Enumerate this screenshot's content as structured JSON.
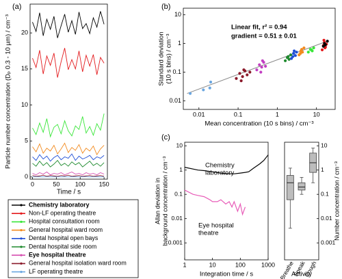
{
  "chart_data": [
    {
      "type": "line",
      "panel_label": "(a)",
      "x_label": "Time / s",
      "y_label": "Particle number concentration (Dₚ 0.3 - 10 µm) / cm⁻³",
      "x": [
        0,
        7.5,
        15,
        22.5,
        30,
        37.5,
        45,
        52.5,
        60,
        67.5,
        75,
        82.5,
        90,
        97.5,
        105,
        112.5,
        120,
        127.5,
        135,
        142.5,
        150
      ],
      "xlim": [
        -5,
        157
      ],
      "xticks": [
        0,
        50,
        100,
        150
      ],
      "ylim": [
        -0.3,
        24
      ],
      "yticks": [
        0,
        5,
        10,
        15,
        20
      ],
      "series": [
        {
          "name": "Chemistry laboratory",
          "color": "#000000",
          "bold": true,
          "values": [
            21.5,
            20.2,
            22.8,
            19.6,
            21.9,
            20.5,
            22.3,
            19.3,
            21.0,
            22.6,
            20.1,
            21.7,
            19.8,
            22.9,
            20.6,
            21.3,
            19.9,
            22.1,
            20.8,
            23.0,
            21.2
          ]
        },
        {
          "name": "Non-LF operating theatre",
          "color": "#e3191c",
          "values": [
            16.5,
            15.2,
            17.6,
            14.3,
            16.8,
            15.5,
            17.2,
            13.8,
            16.0,
            17.9,
            14.9,
            16.3,
            15.0,
            17.5,
            14.6,
            16.9,
            15.4,
            17.0,
            14.2,
            16.6,
            15.8
          ]
        },
        {
          "name": "Hospital consultation room",
          "color": "#39e639",
          "values": [
            6.8,
            5.9,
            7.5,
            6.2,
            8.1,
            5.6,
            6.9,
            7.3,
            6.0,
            7.8,
            6.4,
            5.7,
            7.1,
            6.6,
            8.4,
            6.1,
            7.0,
            5.8,
            7.4,
            6.5,
            8.8
          ]
        },
        {
          "name": "General hospital ward room",
          "color": "#f28a1e",
          "values": [
            4.2,
            3.5,
            4.6,
            3.3,
            4.0,
            3.6,
            4.4,
            3.2,
            3.9,
            4.7,
            3.4,
            4.1,
            3.7,
            4.5,
            3.3,
            4.0,
            3.6,
            4.3,
            3.1,
            3.9,
            4.4
          ]
        },
        {
          "name": "Dental hospital open bays",
          "color": "#1f4fd6",
          "values": [
            2.8,
            2.3,
            3.1,
            2.5,
            2.9,
            2.2,
            2.7,
            3.0,
            2.4,
            2.8,
            2.6,
            3.2,
            2.3,
            2.9,
            2.5,
            2.7,
            3.0,
            2.4,
            2.8,
            2.6,
            3.0
          ]
        },
        {
          "name": "Dental hospital side room",
          "color": "#1e8a2e",
          "values": [
            1.9,
            1.5,
            2.2,
            1.6,
            2.0,
            1.4,
            1.8,
            2.3,
            1.6,
            1.9,
            1.5,
            2.1,
            1.7,
            2.0,
            1.4,
            1.8,
            2.2,
            1.6,
            1.9,
            1.5,
            2.0
          ]
        },
        {
          "name": "Eye hospital theatre",
          "color": "#d64fb0",
          "bold": true,
          "values": [
            0.5,
            0.3,
            0.6,
            0.4,
            0.7,
            0.3,
            0.5,
            0.4,
            0.6,
            0.3,
            0.5,
            0.7,
            0.4,
            0.5,
            0.3,
            0.6,
            0.4,
            0.5,
            0.3,
            0.6,
            0.4
          ]
        },
        {
          "name": "General hospital isolation ward room",
          "color": "#8b1a2b",
          "values": [
            0.2,
            0.1,
            0.15,
            0.25,
            0.1,
            0.2,
            0.15,
            0.1,
            0.2,
            0.15,
            0.25,
            0.1,
            0.15,
            0.2,
            0.1,
            0.15,
            0.2,
            0.1,
            0.15,
            0.2,
            0.1
          ]
        },
        {
          "name": "LF operating theatre",
          "color": "#6aa6e0",
          "values": [
            0.02,
            0.01,
            0.03,
            0.02,
            0.01,
            0.02,
            0.03,
            0.01,
            0.02,
            0.02,
            0.01,
            0.03,
            0.02,
            0.01,
            0.02,
            0.03,
            0.02,
            0.01,
            0.02,
            0.02,
            0.01
          ]
        }
      ]
    },
    {
      "type": "scatter",
      "panel_label": "(b)",
      "x_label": "Mean concentration (10 s bins) / cm⁻³",
      "y_label": [
        "Standard deviation",
        "(10 s bins) / cm⁻³"
      ],
      "annotations": [
        "Linear fit, r² = 0.94",
        "gradient = 0.51 ± 0.01"
      ],
      "annotation_color": "#7a7a7a",
      "log_x": true,
      "log_y": true,
      "xlim": [
        0.004,
        30
      ],
      "xticks": [
        0.01,
        0.1,
        1,
        10
      ],
      "ylim": [
        0.005,
        17
      ],
      "yticks": [
        0.01,
        0.1,
        1,
        10
      ],
      "fit_line": {
        "color": "#8a8a8a",
        "x": [
          0.005,
          20
        ],
        "y": [
          0.018,
          1.24
        ]
      },
      "series": [
        {
          "color": "#6aa6e0",
          "x": [
            0.006,
            0.013,
            0.019,
            0.02
          ],
          "y": [
            0.018,
            0.024,
            0.028,
            0.045
          ]
        },
        {
          "color": "#8b1a2b",
          "x": [
            0.09,
            0.11,
            0.13,
            0.15,
            0.17,
            0.2,
            0.12,
            0.14
          ],
          "y": [
            0.06,
            0.09,
            0.07,
            0.11,
            0.08,
            0.1,
            0.05,
            0.12
          ]
        },
        {
          "color": "#c23fc2",
          "x": [
            0.3,
            0.35,
            0.4,
            0.45,
            0.5,
            0.38,
            0.42
          ],
          "y": [
            0.12,
            0.18,
            0.15,
            0.22,
            0.16,
            0.1,
            0.25
          ]
        },
        {
          "color": "#1e8a2e",
          "x": [
            1.6,
            1.8,
            2.0,
            2.2,
            1.9
          ],
          "y": [
            0.25,
            0.32,
            0.28,
            0.4,
            0.35
          ]
        },
        {
          "color": "#1f4fd6",
          "x": [
            2.3,
            2.6,
            2.9,
            3.1,
            2.7,
            2.5
          ],
          "y": [
            0.3,
            0.45,
            0.38,
            0.5,
            0.55,
            0.35
          ]
        },
        {
          "color": "#f28a1e",
          "x": [
            3.6,
            4.0,
            4.4,
            4.8,
            4.2,
            3.9
          ],
          "y": [
            0.4,
            0.55,
            0.5,
            0.7,
            0.62,
            0.45
          ]
        },
        {
          "color": "#39e639",
          "x": [
            6.2,
            7.0,
            7.8,
            8.5,
            7.4
          ],
          "y": [
            0.5,
            0.62,
            0.55,
            0.7,
            0.6
          ]
        },
        {
          "color": "#e3191c",
          "x": [
            14,
            15,
            16,
            17,
            18,
            15.5,
            16.5
          ],
          "y": [
            0.6,
            0.85,
            1.1,
            0.75,
            0.95,
            1.3,
            0.7
          ]
        },
        {
          "color": "#000000",
          "x": [
            15,
            16,
            17,
            19
          ],
          "y": [
            0.8,
            1.0,
            0.9,
            1.2
          ]
        }
      ]
    },
    {
      "type": "line",
      "panel_label": "(c)",
      "x_label": "Integration time / s",
      "y_label": [
        "Allan deviation in",
        "background concentration / cm⁻³"
      ],
      "log_x": true,
      "log_y": true,
      "xlim": [
        1,
        1000
      ],
      "xticks": [
        1,
        10,
        100,
        1000
      ],
      "ylim": [
        0.0002,
        14
      ],
      "yticks": [
        0.001,
        0.01,
        0.1,
        1,
        10
      ],
      "series": [
        {
          "name": [
            "Chemistry",
            "laboratory"
          ],
          "color": "#000000",
          "x": [
            1,
            2,
            3,
            5,
            10,
            20,
            40,
            60,
            100,
            150,
            200,
            300,
            500,
            700,
            1000
          ],
          "values": [
            1.3,
            1.1,
            1.0,
            0.95,
            0.85,
            0.75,
            0.7,
            0.7,
            0.75,
            0.8,
            0.85,
            1.2,
            1.8,
            2.5,
            4.2
          ]
        },
        {
          "name": [
            "Eye hospital",
            "theatre"
          ],
          "color": "#e85cb8",
          "x": [
            1,
            2,
            3,
            5,
            8,
            10,
            15,
            20,
            30,
            40,
            50,
            60,
            80,
            100,
            120,
            150
          ],
          "values": [
            0.15,
            0.1,
            0.09,
            0.08,
            0.06,
            0.05,
            0.05,
            0.06,
            0.04,
            0.05,
            0.03,
            0.05,
            0.02,
            0.04,
            0.015,
            0.03
          ]
        }
      ]
    },
    {
      "type": "box",
      "x_label": "Activity",
      "y_label": "Number concentration / cm⁻³",
      "y_axis_side": "right",
      "log_y": true,
      "ylim": [
        0.0002,
        14
      ],
      "yticks": [
        0.001,
        0.01,
        0.1,
        1,
        10
      ],
      "color": "#bdbdbd",
      "categories": [
        "Breathe",
        "Speak",
        "Cough"
      ],
      "min": [
        0.004,
        0.1,
        0.3
      ],
      "q1": [
        0.06,
        0.15,
        0.8
      ],
      "median": [
        0.3,
        0.2,
        2
      ],
      "q3": [
        0.6,
        0.3,
        5
      ],
      "max": [
        1.2,
        0.5,
        8
      ]
    }
  ]
}
